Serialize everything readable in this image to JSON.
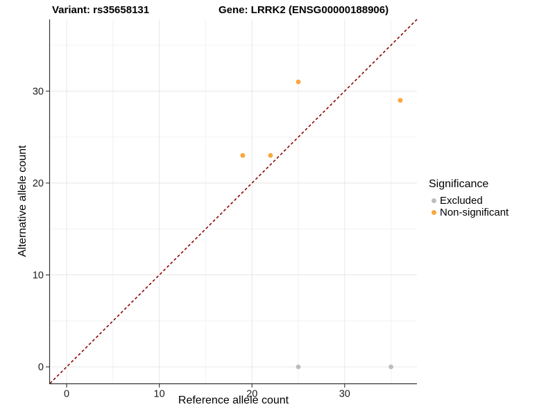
{
  "titles": {
    "variant": "Variant: rs35658131",
    "gene": "Gene: LRRK2 (ENSG00000188906)"
  },
  "axes": {
    "x_label": "Reference allele count",
    "y_label": "Alternative allele count"
  },
  "legend": {
    "title": "Significance",
    "position": "right",
    "items": [
      {
        "label": "Excluded",
        "color": "#BDBDBD"
      },
      {
        "label": "Non-significant",
        "color": "#FCA63E"
      }
    ]
  },
  "chart_data": {
    "type": "scatter",
    "title": "Variant: rs35658131   Gene: LRRK2 (ENSG00000188906)",
    "xlabel": "Reference allele count",
    "ylabel": "Alternative allele count",
    "xlim": [
      -1.8,
      37.8
    ],
    "ylim": [
      -1.8,
      37.8
    ],
    "x_ticks": [
      0,
      10,
      20,
      30
    ],
    "y_ticks": [
      0,
      10,
      20,
      30
    ],
    "x_minor_ticks": [
      5,
      15,
      25,
      35
    ],
    "y_minor_ticks": [
      5,
      15,
      25,
      35
    ],
    "grid": true,
    "legend_position": "right",
    "series": [
      {
        "name": "Excluded",
        "color": "#BDBDBD",
        "points": [
          [
            25,
            0
          ],
          [
            35,
            0
          ]
        ]
      },
      {
        "name": "Non-significant",
        "color": "#FCA63E",
        "points": [
          [
            19,
            23
          ],
          [
            22,
            23
          ],
          [
            25,
            31
          ],
          [
            36,
            29
          ]
        ]
      }
    ],
    "reference_line": {
      "type": "identity (y = x)",
      "color": "#8B0000",
      "style": "dashed"
    }
  },
  "style": {
    "point_radius": 3.4,
    "grid_major_color": "#E6E6E6",
    "grid_minor_color": "#F2F2F2",
    "axis_color": "#333333",
    "tick_color": "#333333"
  }
}
